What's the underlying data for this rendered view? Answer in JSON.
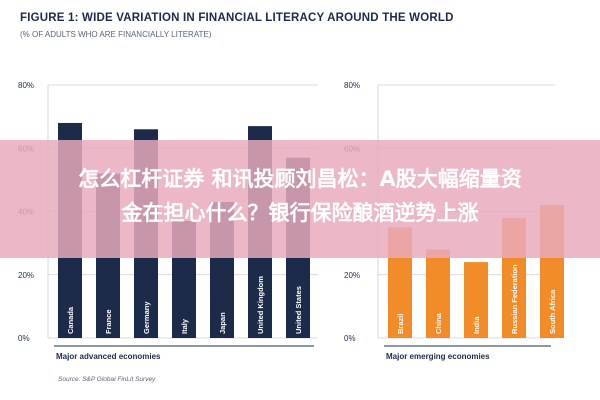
{
  "title": "FIGURE 1: WIDE VARIATION IN FINANCIAL LITERACY AROUND THE WORLD",
  "subtitle": "(% OF ADULTS WHO ARE FINANCIALLY LITERATE)",
  "source": "Source: S&P Global FinLit Survey",
  "overlay": {
    "line1": "怎么杠杆证券 和讯投顾刘昌松：A股大幅缩量资",
    "line2": "金在担心什么？银行保险酿酒逆势上涨"
  },
  "colors": {
    "advanced": "#1c2b4a",
    "emerging": "#f28c28",
    "grid": "#c9cdd6",
    "axis_text": "#1c2b4a",
    "overlay": "#e8aabc"
  },
  "chart_data": [
    {
      "type": "bar",
      "xlabel": "Major advanced economies",
      "ylim": [
        0,
        80
      ],
      "ytick_labels": [
        "0%",
        "20%",
        "40%",
        "60%",
        "80%"
      ],
      "yticks": [
        0,
        20,
        40,
        60,
        80
      ],
      "grid": true,
      "categories": [
        "Canada",
        "France",
        "Germany",
        "Italy",
        "Japan",
        "United Kingdom",
        "United States"
      ],
      "values": [
        68,
        52,
        66,
        37,
        43,
        67,
        57
      ],
      "color": "#1c2b4a"
    },
    {
      "type": "bar",
      "xlabel": "Major emerging economies",
      "ylim": [
        0,
        80
      ],
      "ytick_labels": [
        "0%",
        "20%",
        "40%",
        "60%",
        "80%"
      ],
      "yticks": [
        0,
        20,
        40,
        60,
        80
      ],
      "grid": true,
      "categories": [
        "Brazil",
        "China",
        "India",
        "Russian Federation",
        "South Africa"
      ],
      "values": [
        35,
        28,
        24,
        38,
        42
      ],
      "color": "#f28c28"
    }
  ]
}
